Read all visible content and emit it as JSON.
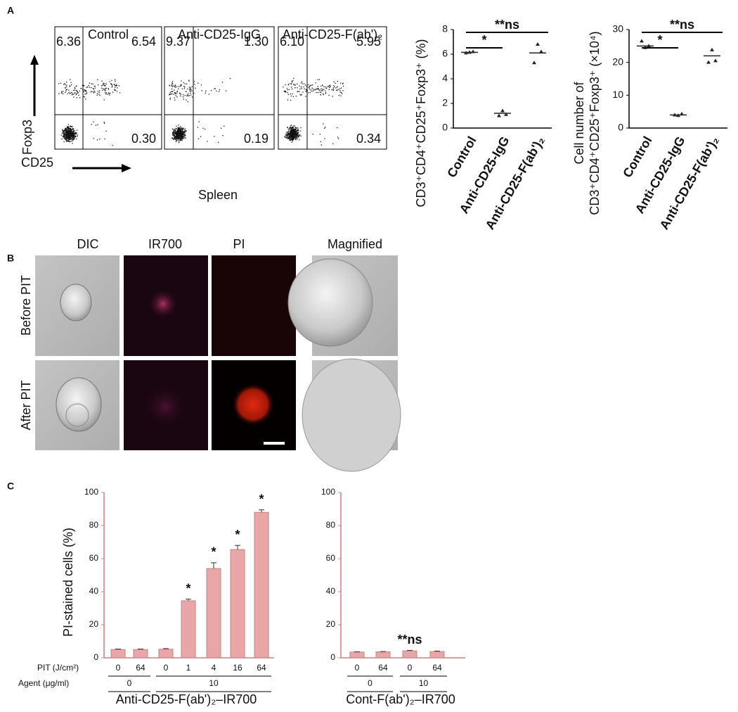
{
  "panel_labels": [
    "A",
    "B",
    "C"
  ],
  "flow": {
    "plots": [
      {
        "name": "Control",
        "quadrants": [
          "6.36",
          "6.54",
          "0.30"
        ]
      },
      {
        "name": "Anti-CD25-IgG",
        "quadrants": [
          "9.37",
          "1.30",
          "0.19"
        ]
      },
      {
        "name": "Anti-CD25-F(ab')₂",
        "quadrants": [
          "6.10",
          "5.95",
          "0.34"
        ]
      }
    ],
    "y_label": "Foxp3",
    "x_label": "CD25",
    "caption": "Spleen"
  },
  "microscopy": {
    "columns": [
      "DIC",
      "IR700",
      "PI",
      "Magnified"
    ],
    "rows": [
      "Before PIT",
      "After PIT"
    ]
  },
  "chart_data": [
    {
      "type": "dot",
      "categories": [
        "Control",
        "Anti-CD25-IgG",
        "Anti-CD25-F(ab')₂"
      ],
      "values": [
        [
          6.1,
          6.15,
          6.2
        ],
        [
          1.0,
          1.4,
          1.1
        ],
        [
          5.3,
          6.8,
          6.2
        ]
      ],
      "means": [
        6.15,
        1.2,
        6.1
      ],
      "ylabel": "CD3⁺CD4⁺CD25⁺Foxp3⁺ (%)",
      "ylim": [
        0,
        8
      ],
      "yticks": [
        0,
        2,
        4,
        6,
        8
      ],
      "annotations": [
        "*",
        "**ns"
      ],
      "color": "#222222"
    },
    {
      "type": "dot",
      "categories": [
        "Control",
        "Anti-CD25-IgG",
        "Anti-CD25-F(ab')₂"
      ],
      "values": [
        [
          26.5,
          24.5,
          25
        ],
        [
          4.0,
          3.8,
          4.3
        ],
        [
          20,
          23.8,
          20.5
        ]
      ],
      "means": [
        25,
        4,
        22
      ],
      "ylabel": [
        "Cell number of",
        "CD3⁺CD4⁺CD25⁺Foxp3⁺ (×10⁴)"
      ],
      "ylim": [
        0,
        30
      ],
      "yticks": [
        0,
        10,
        20,
        30
      ],
      "annotations": [
        "*",
        "**ns"
      ],
      "color": "#222222"
    },
    {
      "type": "bar",
      "categories": [
        "0",
        "64",
        "0",
        "1",
        "4",
        "16",
        "64"
      ],
      "groups": [
        "0",
        "0",
        "10",
        "10",
        "10",
        "10",
        "10"
      ],
      "values": [
        5,
        5,
        5.2,
        34.5,
        54,
        65.5,
        88
      ],
      "errors": [
        0.3,
        0.3,
        0.4,
        1,
        3.5,
        2.5,
        1.5
      ],
      "markers": [
        null,
        null,
        null,
        "*",
        "*",
        "*",
        "*"
      ],
      "ylabel": "PI-stained cells (%)",
      "xlabel": "Anti-CD25-F(ab')₂–IR700",
      "row_labels": [
        "PIT (J/cm²)",
        "Agent (μg/ml)"
      ],
      "ylim": [
        0,
        100
      ],
      "yticks": [
        0,
        20,
        40,
        60,
        80,
        100
      ],
      "color": "#e8a6a6"
    },
    {
      "type": "bar",
      "categories": [
        "0",
        "64",
        "0",
        "64"
      ],
      "groups": [
        "0",
        "0",
        "10",
        "10"
      ],
      "values": [
        3.5,
        3.6,
        4.2,
        3.8
      ],
      "errors": [
        0.2,
        0.2,
        0.3,
        0.3
      ],
      "markers": [
        null,
        null,
        "**ns",
        null
      ],
      "xlabel": "Cont-F(ab')₂–IR700",
      "ylim": [
        0,
        100
      ],
      "yticks": [
        0,
        20,
        40,
        60,
        80,
        100
      ],
      "color": "#e8a6a6"
    }
  ]
}
